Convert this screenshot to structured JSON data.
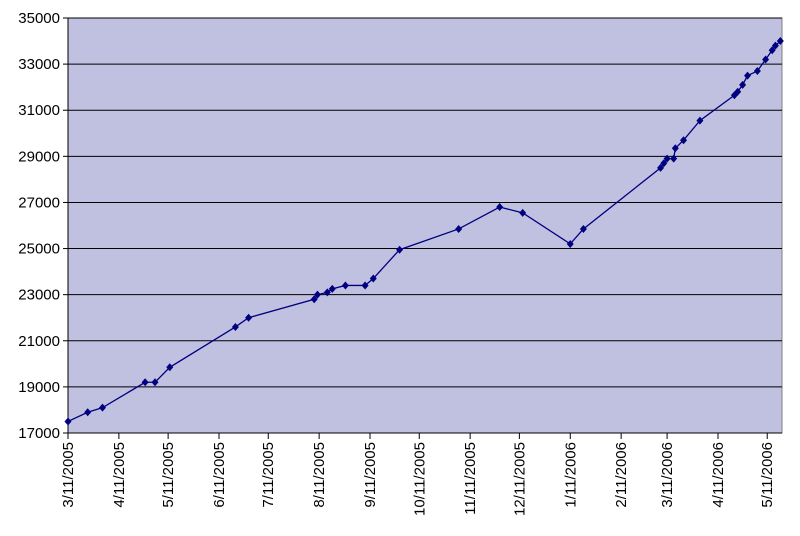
{
  "chart_data": {
    "type": "line",
    "x": [
      "2005-03-11",
      "2005-03-23",
      "2005-04-01",
      "2005-04-27",
      "2005-05-03",
      "2005-05-12",
      "2005-06-21",
      "2005-06-29",
      "2005-08-08",
      "2005-08-10",
      "2005-08-16",
      "2005-08-19",
      "2005-08-27",
      "2005-09-08",
      "2005-09-13",
      "2005-09-29",
      "2005-11-04",
      "2005-11-29",
      "2005-12-13",
      "2006-01-11",
      "2006-01-19",
      "2006-03-07",
      "2006-03-09",
      "2006-03-11",
      "2006-03-15",
      "2006-03-16",
      "2006-03-21",
      "2006-03-31",
      "2006-04-21",
      "2006-04-23",
      "2006-04-26",
      "2006-04-29",
      "2006-05-05",
      "2006-05-10",
      "2006-05-14",
      "2006-05-16",
      "2006-05-19"
    ],
    "series": [
      {
        "color": "#000080",
        "values": [
          17500,
          17900,
          18100,
          19200,
          19200,
          19850,
          21600,
          22000,
          22800,
          23000,
          23100,
          23250,
          23400,
          23400,
          23700,
          24950,
          25850,
          26800,
          26550,
          25200,
          25850,
          28500,
          28700,
          28900,
          28900,
          29350,
          29700,
          30550,
          31650,
          31800,
          32100,
          32500,
          32700,
          33200,
          33600,
          33800,
          34000
        ]
      }
    ],
    "xlim": [
      "2005-03-11",
      "2006-05-20"
    ],
    "xticks": [
      {
        "value": "2005-03-11",
        "label": "3/11/2005"
      },
      {
        "value": "2005-04-11",
        "label": "4/11/2005"
      },
      {
        "value": "2005-05-11",
        "label": "5/11/2005"
      },
      {
        "value": "2005-06-11",
        "label": "6/11/2005"
      },
      {
        "value": "2005-07-11",
        "label": "7/11/2005"
      },
      {
        "value": "2005-08-11",
        "label": "8/11/2005"
      },
      {
        "value": "2005-09-11",
        "label": "9/11/2005"
      },
      {
        "value": "2005-10-11",
        "label": "10/11/2005"
      },
      {
        "value": "2005-11-11",
        "label": "11/11/2005"
      },
      {
        "value": "2005-12-11",
        "label": "12/11/2005"
      },
      {
        "value": "2006-01-11",
        "label": "1/11/2006"
      },
      {
        "value": "2006-02-11",
        "label": "2/11/2006"
      },
      {
        "value": "2006-03-11",
        "label": "3/11/2006"
      },
      {
        "value": "2006-04-11",
        "label": "4/11/2006"
      },
      {
        "value": "2006-05-11",
        "label": "5/11/2006"
      }
    ],
    "ylim": [
      17000,
      35000
    ],
    "yticks": [
      17000,
      19000,
      21000,
      23000,
      25000,
      27000,
      29000,
      31000,
      33000,
      35000
    ],
    "grid": true,
    "background": "#c0c0e0"
  }
}
